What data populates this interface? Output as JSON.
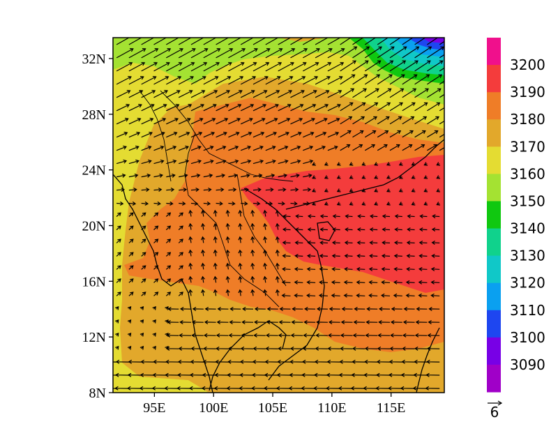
{
  "map": {
    "lat_ticks": [
      "32N",
      "28N",
      "24N",
      "20N",
      "16N",
      "12N",
      "8N"
    ],
    "lon_ticks": [
      "95E",
      "100E",
      "105E",
      "110E",
      "115E"
    ],
    "lat_range": [
      8,
      33.5
    ],
    "lon_range": [
      91.5,
      119.5
    ],
    "reference_vector": {
      "label": "6",
      "magnitude": 6
    }
  },
  "colorbar": {
    "labels": [
      "3200",
      "3190",
      "3180",
      "3170",
      "3160",
      "3150",
      "3140",
      "3130",
      "3120",
      "3110",
      "3100",
      "3090"
    ],
    "colors": [
      "#f0108c",
      "#f43c3c",
      "#ef7d27",
      "#e2a82b",
      "#e4dc32",
      "#a4e232",
      "#10c810",
      "#10d28c",
      "#10c8c8",
      "#0aa0f0",
      "#1e46f0",
      "#7800e6",
      "#a000c8"
    ]
  },
  "field_colors": {
    "c3090": "#7800e6",
    "c3100": "#1e46f0",
    "c3110": "#0aa0f0",
    "c3120": "#10c8c8",
    "c3130": "#10d28c",
    "c3150": "#a4e232",
    "c3160": "#e4dc32",
    "c3170": "#e2a82b",
    "c3180": "#ef7d27",
    "c3190": "#f43c3c"
  }
}
